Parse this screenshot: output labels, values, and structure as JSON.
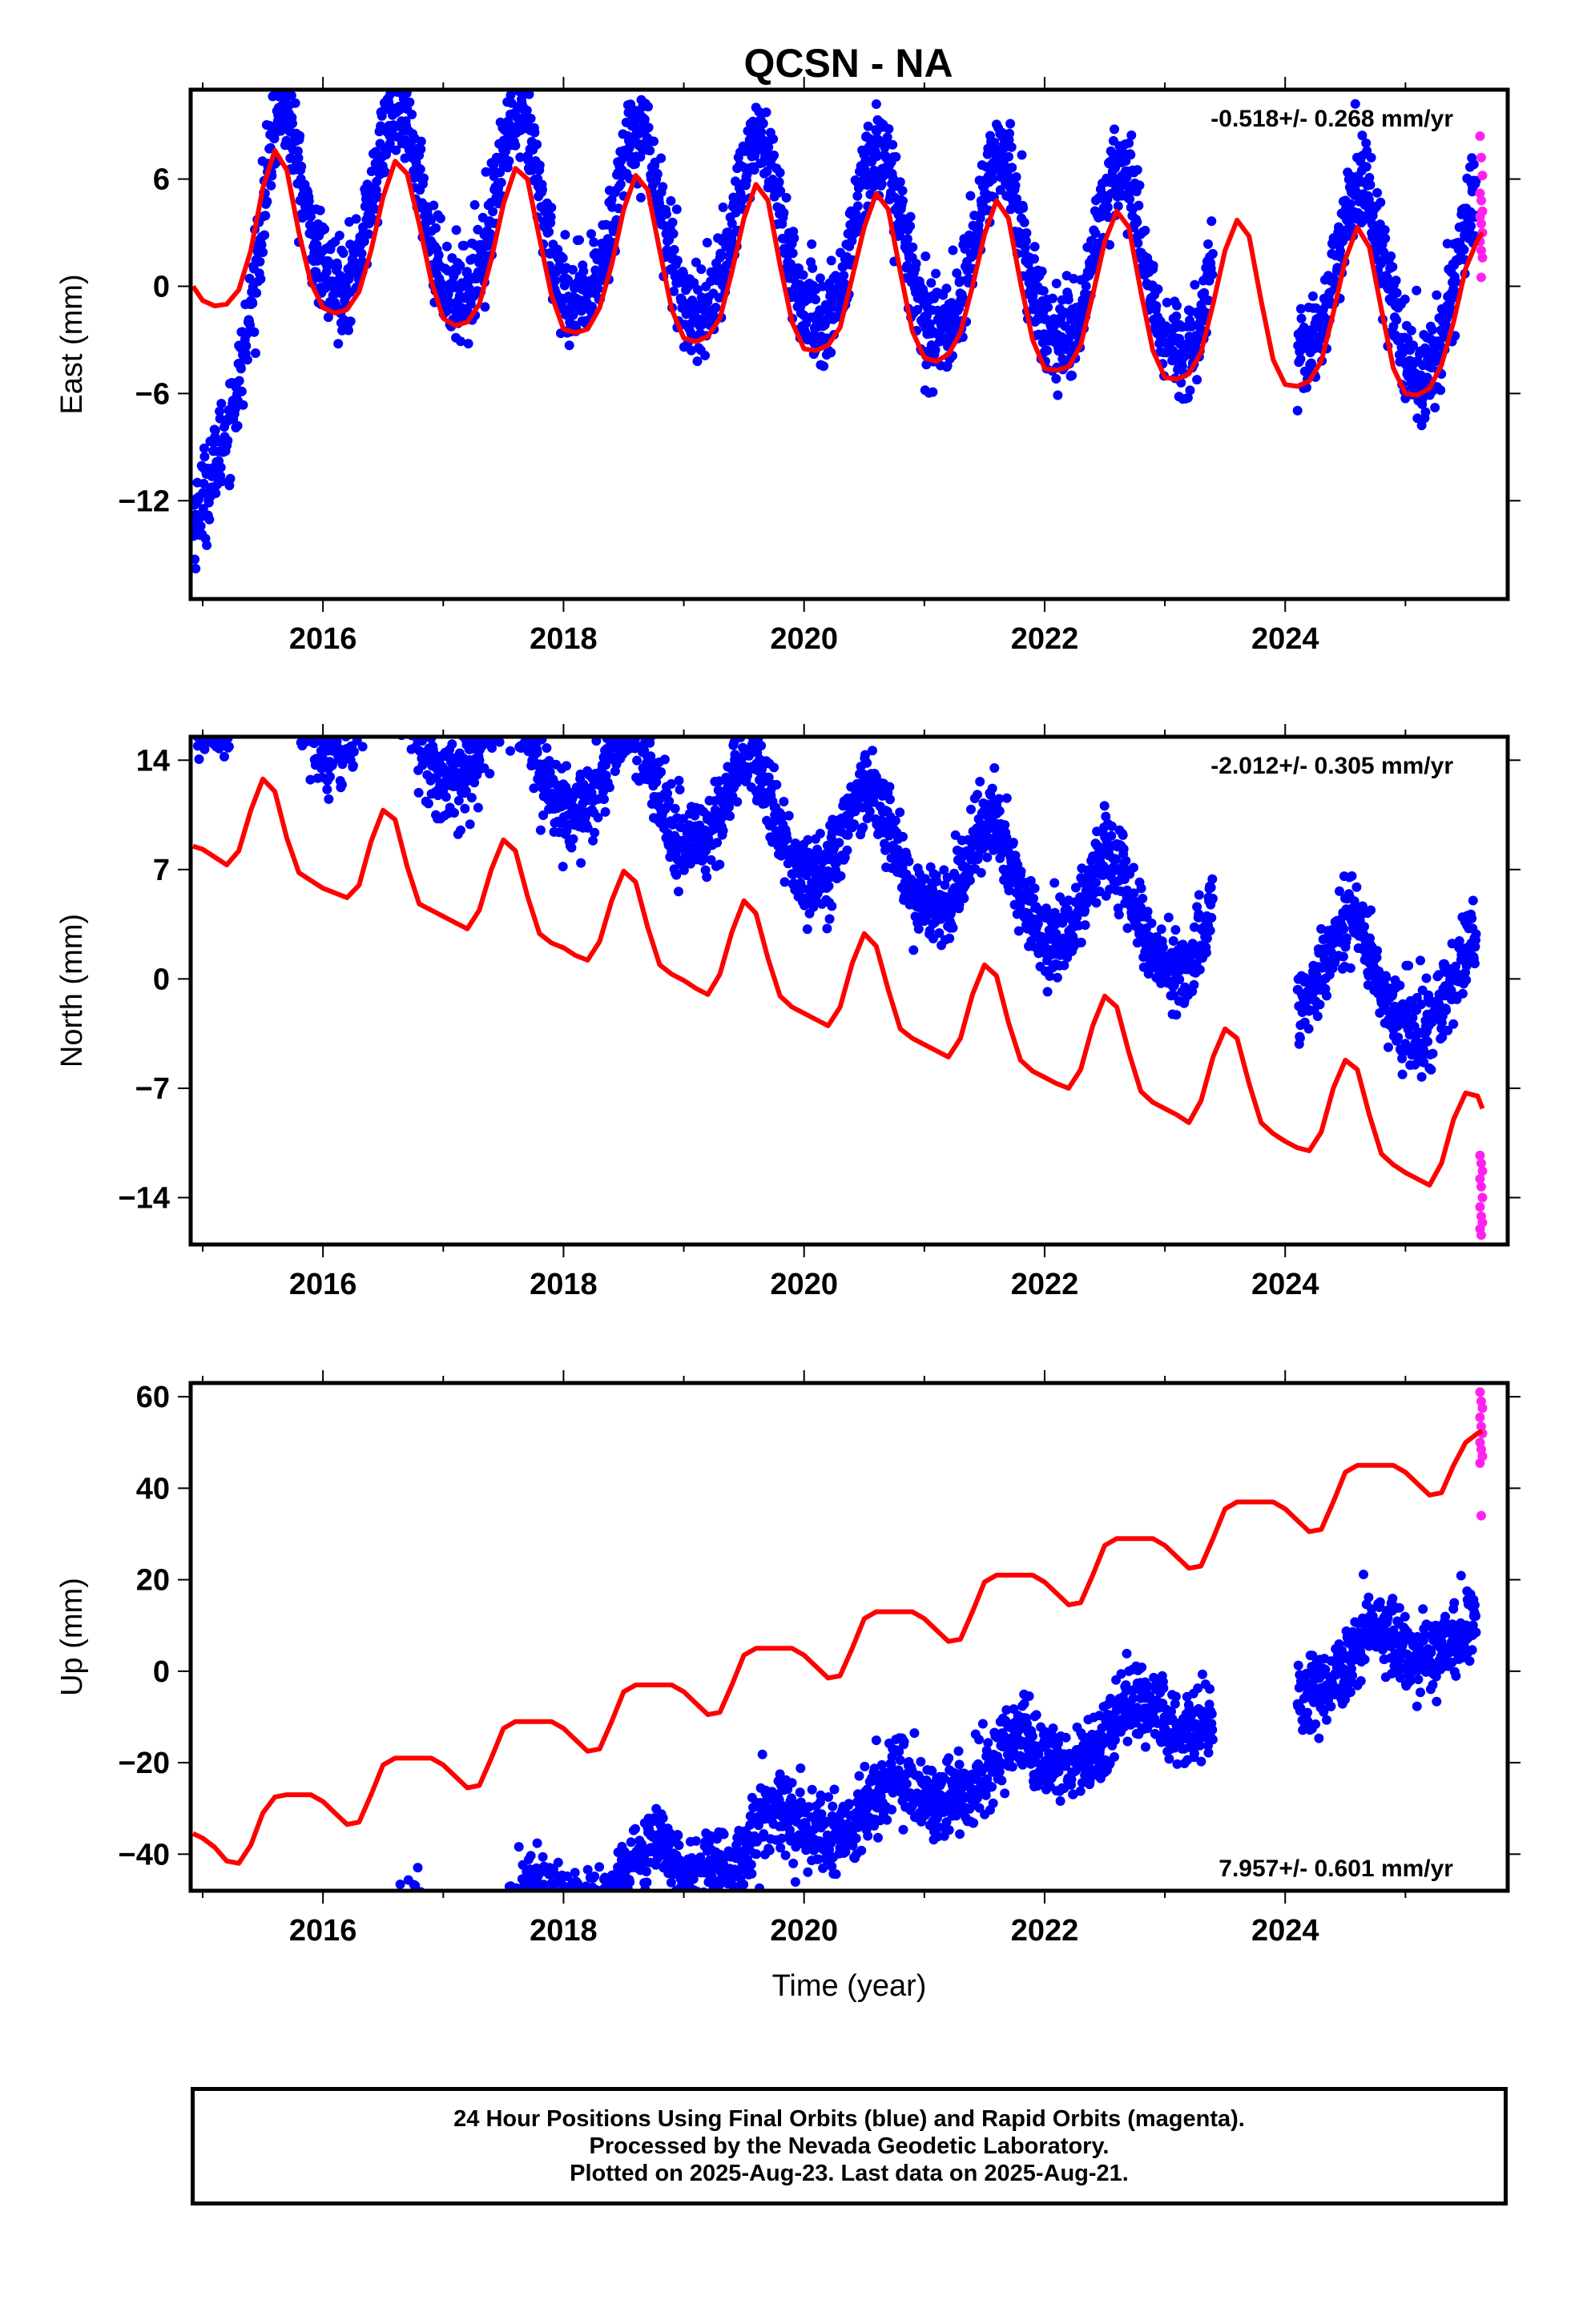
{
  "title": "QCSN - NA",
  "colors": {
    "final": "#0000ff",
    "rapid": "#ff22ee",
    "model": "#ff0000",
    "frame": "#000000"
  },
  "chart_data": [
    {
      "type": "scatter",
      "component": "east",
      "ylabel": "East (mm)",
      "xlabel": "",
      "rate_text": "-0.518+/- 0.268 mm/yr",
      "rate_position": "top-right",
      "xlim": [
        2014.9,
        2025.85
      ],
      "ylim": [
        -17.5,
        11
      ],
      "xticks": [
        2016,
        2018,
        2020,
        2022,
        2024
      ],
      "yticks": [
        6,
        0,
        -6,
        -12
      ],
      "data_start": 2014.92,
      "data_end": 2025.64,
      "trend_mm_per_yr": -0.518,
      "offset_mm": 2.5,
      "seasonal_amplitude_mm": 5.0,
      "seasonal_peak_fraction": 0.62,
      "scatter_mm": 1.3,
      "early_transient": {
        "start_mm": -13.5,
        "end_year": 2015.65
      },
      "gaps": [
        [
          2023.4,
          2024.1
        ]
      ],
      "model_series": {
        "name": "",
        "x": [
          2014.92,
          2015.0,
          2015.1,
          2015.2,
          2015.3,
          2015.4,
          2015.5,
          2015.6,
          2015.7,
          2015.8,
          2015.9,
          2016.0,
          2016.1,
          2016.2,
          2016.3,
          2016.4,
          2016.5,
          2016.6,
          2016.7,
          2016.8,
          2016.9,
          2017.0,
          2017.1,
          2017.2,
          2017.3,
          2017.4,
          2017.5,
          2017.6,
          2017.7,
          2017.8,
          2017.9,
          2018.0,
          2018.1,
          2018.2,
          2018.3,
          2018.4,
          2018.5,
          2018.6,
          2018.7,
          2018.8,
          2018.9,
          2019.0,
          2019.1,
          2019.2,
          2019.3,
          2019.4,
          2019.5,
          2019.6,
          2019.7,
          2019.8,
          2019.9,
          2020.0,
          2020.1,
          2020.2,
          2020.3,
          2020.4,
          2020.5,
          2020.6,
          2020.7,
          2020.8,
          2020.9,
          2021.0,
          2021.1,
          2021.2,
          2021.3,
          2021.4,
          2021.5,
          2021.6,
          2021.7,
          2021.8,
          2021.9,
          2022.0,
          2022.1,
          2022.2,
          2022.3,
          2022.4,
          2022.5,
          2022.6,
          2022.7,
          2022.8,
          2022.9,
          2023.0,
          2023.1,
          2023.2,
          2023.3,
          2023.4,
          2023.5,
          2023.6,
          2023.7,
          2023.8,
          2023.9,
          2024.0,
          2024.1,
          2024.2,
          2024.3,
          2024.4,
          2024.5,
          2024.6,
          2024.7,
          2024.8,
          2024.9,
          2025.0,
          2025.1,
          2025.2,
          2025.3,
          2025.4,
          2025.5,
          2025.6,
          2025.64
        ],
        "y": [
          0.0,
          -0.8,
          -1.1,
          -1.0,
          -0.2,
          2.0,
          5.5,
          7.6,
          6.5,
          3.0,
          0.2,
          -1.2,
          -1.5,
          -1.3,
          -0.3,
          2.0,
          5.0,
          7.0,
          6.3,
          3.5,
          0.3,
          -1.8,
          -2.2,
          -2.0,
          -1.0,
          1.5,
          4.6,
          6.6,
          6.0,
          2.7,
          -0.5,
          -2.4,
          -2.6,
          -2.4,
          -1.2,
          1.2,
          4.3,
          6.2,
          5.4,
          2.0,
          -1.3,
          -2.9,
          -3.1,
          -2.8,
          -1.8,
          0.8,
          3.8,
          5.7,
          4.8,
          1.2,
          -2.0,
          -3.5,
          -3.6,
          -3.3,
          -2.3,
          0.5,
          3.3,
          5.2,
          4.3,
          0.8,
          -2.5,
          -4.0,
          -4.2,
          -3.8,
          -2.6,
          0.0,
          2.9,
          4.8,
          3.8,
          0.2,
          -3.0,
          -4.6,
          -4.7,
          -4.5,
          -3.3,
          -0.5,
          2.5,
          4.2,
          3.3,
          -0.3,
          -3.6,
          -5.1,
          -5.2,
          -4.9,
          -3.7,
          -1.0,
          2.0,
          3.7,
          2.8,
          -0.8,
          -4.1,
          -5.5,
          -5.6,
          -5.3,
          -4.2,
          -1.5,
          1.5,
          3.3,
          2.2,
          -1.3,
          -4.6,
          -6.0,
          -6.1,
          -5.7,
          -4.4,
          -2.0,
          1.0,
          2.6,
          3.0
        ]
      },
      "rapid_points": [
        [
          2025.62,
          8.4
        ],
        [
          2025.63,
          7.2
        ],
        [
          2025.64,
          6.2
        ],
        [
          2025.62,
          5.2
        ],
        [
          2025.63,
          4.8
        ],
        [
          2025.64,
          4.2
        ],
        [
          2025.62,
          3.9
        ],
        [
          2025.63,
          3.5
        ],
        [
          2025.64,
          3.0
        ],
        [
          2025.62,
          2.5
        ],
        [
          2025.63,
          2.0
        ],
        [
          2025.64,
          1.6
        ],
        [
          2025.63,
          0.5
        ]
      ]
    },
    {
      "type": "scatter",
      "component": "north",
      "ylabel": "North (mm)",
      "xlabel": "",
      "rate_text": "-2.012+/- 0.305 mm/yr",
      "rate_position": "top-right",
      "xlim": [
        2014.9,
        2025.85
      ],
      "ylim": [
        -17,
        15.5
      ],
      "xticks": [
        2016,
        2018,
        2020,
        2022,
        2024
      ],
      "yticks": [
        14,
        7,
        0,
        -7,
        -14
      ],
      "data_start": 2014.92,
      "data_end": 2025.64,
      "trend_mm_per_yr": -2.012,
      "offset_mm": 9.5,
      "seasonal_amplitude_mm": 3.3,
      "seasonal_peak_fraction": 0.55,
      "scatter_mm": 1.3,
      "gaps": [
        [
          2023.4,
          2024.1
        ]
      ],
      "model_series": {
        "name": "",
        "x": [
          2014.92,
          2015.0,
          2015.1,
          2015.2,
          2015.3,
          2015.4,
          2015.5,
          2015.6,
          2015.7,
          2015.8,
          2015.9,
          2016.0,
          2016.1,
          2016.2,
          2016.3,
          2016.4,
          2016.5,
          2016.6,
          2016.7,
          2016.8,
          2016.9,
          2017.0,
          2017.1,
          2017.2,
          2017.3,
          2017.4,
          2017.5,
          2017.6,
          2017.7,
          2017.8,
          2017.9,
          2018.0,
          2018.1,
          2018.2,
          2018.3,
          2018.4,
          2018.5,
          2018.6,
          2018.7,
          2018.8,
          2018.9,
          2019.0,
          2019.1,
          2019.2,
          2019.3,
          2019.4,
          2019.5,
          2019.6,
          2019.7,
          2019.8,
          2019.9,
          2020.0,
          2020.1,
          2020.2,
          2020.3,
          2020.4,
          2020.5,
          2020.6,
          2020.7,
          2020.8,
          2020.9,
          2021.0,
          2021.1,
          2021.2,
          2021.3,
          2021.4,
          2021.5,
          2021.6,
          2021.7,
          2021.8,
          2021.9,
          2022.0,
          2022.1,
          2022.2,
          2022.3,
          2022.4,
          2022.5,
          2022.6,
          2022.7,
          2022.8,
          2022.9,
          2023.0,
          2023.1,
          2023.2,
          2023.3,
          2023.4,
          2023.5,
          2023.6,
          2023.7,
          2023.8,
          2023.9,
          2024.0,
          2024.1,
          2024.2,
          2024.3,
          2024.4,
          2024.5,
          2024.6,
          2024.7,
          2024.8,
          2024.9,
          2025.0,
          2025.1,
          2025.2,
          2025.3,
          2025.4,
          2025.5,
          2025.6,
          2025.64
        ],
        "y": [
          8.5,
          8.3,
          7.8,
          7.3,
          8.2,
          10.8,
          12.8,
          12.0,
          9.0,
          6.8,
          6.3,
          5.8,
          5.5,
          5.2,
          6.0,
          8.8,
          10.8,
          10.2,
          7.2,
          4.8,
          4.4,
          4.0,
          3.6,
          3.2,
          4.4,
          7.0,
          8.9,
          8.2,
          5.3,
          2.9,
          2.3,
          2.0,
          1.5,
          1.2,
          2.4,
          5.0,
          6.9,
          6.2,
          3.3,
          0.9,
          0.3,
          -0.1,
          -0.6,
          -1.0,
          0.3,
          3.0,
          5.0,
          4.2,
          1.3,
          -1.1,
          -1.8,
          -2.2,
          -2.6,
          -3.0,
          -1.8,
          1.0,
          2.9,
          2.1,
          -0.7,
          -3.2,
          -3.8,
          -4.2,
          -4.6,
          -5.0,
          -3.8,
          -1.0,
          0.9,
          0.2,
          -2.8,
          -5.2,
          -5.9,
          -6.3,
          -6.7,
          -7.0,
          -5.8,
          -3.0,
          -1.1,
          -1.8,
          -4.7,
          -7.2,
          -7.9,
          -8.3,
          -8.7,
          -9.2,
          -7.8,
          -5.0,
          -3.2,
          -3.8,
          -6.7,
          -9.2,
          -9.9,
          -10.4,
          -10.8,
          -11.0,
          -9.8,
          -7.0,
          -5.2,
          -5.8,
          -8.7,
          -11.2,
          -11.9,
          -12.4,
          -12.8,
          -13.2,
          -11.8,
          -9.0,
          -7.3,
          -7.5,
          -8.3
        ]
      },
      "rapid_points": [
        [
          2025.62,
          -11.3
        ],
        [
          2025.63,
          -11.8
        ],
        [
          2025.64,
          -12.3
        ],
        [
          2025.62,
          -12.8
        ],
        [
          2025.63,
          -13.3
        ],
        [
          2025.64,
          -14.0
        ],
        [
          2025.62,
          -14.6
        ],
        [
          2025.63,
          -15.2
        ],
        [
          2025.64,
          -15.6
        ],
        [
          2025.62,
          -16.0
        ],
        [
          2025.63,
          -16.4
        ]
      ]
    },
    {
      "type": "scatter",
      "component": "up",
      "ylabel": "Up (mm)",
      "xlabel": "Time (year)",
      "rate_text": "7.957+/- 0.601 mm/yr",
      "rate_position": "bottom-right",
      "xlim": [
        2014.9,
        2025.85
      ],
      "ylim": [
        -48,
        63
      ],
      "xticks": [
        2016,
        2018,
        2020,
        2022,
        2024
      ],
      "yticks": [
        60,
        40,
        20,
        0,
        -20,
        -40
      ],
      "data_start": 2014.92,
      "data_end": 2025.64,
      "trend_mm_per_yr": 7.957,
      "offset_mm": -34,
      "seasonal_amplitude_mm": 4.5,
      "seasonal_peak_fraction": 0.75,
      "scatter_mm": 4.2,
      "gaps": [
        [
          2023.4,
          2024.1
        ]
      ],
      "model_series": {
        "name": "",
        "x": [
          2014.92,
          2015.0,
          2015.1,
          2015.2,
          2015.3,
          2015.4,
          2015.5,
          2015.6,
          2015.7,
          2015.8,
          2015.9,
          2016.0,
          2016.1,
          2016.2,
          2016.3,
          2016.4,
          2016.5,
          2016.6,
          2016.7,
          2016.8,
          2016.9,
          2017.0,
          2017.1,
          2017.2,
          2017.3,
          2017.4,
          2017.5,
          2017.6,
          2017.7,
          2017.8,
          2017.9,
          2018.0,
          2018.1,
          2018.2,
          2018.3,
          2018.4,
          2018.5,
          2018.6,
          2018.7,
          2018.8,
          2018.9,
          2019.0,
          2019.1,
          2019.2,
          2019.3,
          2019.4,
          2019.5,
          2019.6,
          2019.7,
          2019.8,
          2019.9,
          2020.0,
          2020.1,
          2020.2,
          2020.3,
          2020.4,
          2020.5,
          2020.6,
          2020.7,
          2020.8,
          2020.9,
          2021.0,
          2021.1,
          2021.2,
          2021.3,
          2021.4,
          2021.5,
          2021.6,
          2021.7,
          2021.8,
          2021.9,
          2022.0,
          2022.1,
          2022.2,
          2022.3,
          2022.4,
          2022.5,
          2022.6,
          2022.7,
          2022.8,
          2022.9,
          2023.0,
          2023.1,
          2023.2,
          2023.3,
          2023.4,
          2023.5,
          2023.6,
          2023.7,
          2023.8,
          2023.9,
          2024.0,
          2024.1,
          2024.2,
          2024.3,
          2024.4,
          2024.5,
          2024.6,
          2024.7,
          2024.8,
          2024.9,
          2025.0,
          2025.1,
          2025.2,
          2025.3,
          2025.4,
          2025.5,
          2025.6,
          2025.64
        ],
        "y": [
          -35.5,
          -36.5,
          -38.5,
          -41.5,
          -42.0,
          -38.0,
          -31.0,
          -27.5,
          -27.0,
          -27.0,
          -27.0,
          -28.5,
          -31.0,
          -33.5,
          -33.0,
          -27.0,
          -20.5,
          -19.0,
          -19.0,
          -19.0,
          -19.0,
          -20.5,
          -23.0,
          -25.5,
          -25.0,
          -19.0,
          -12.5,
          -11.0,
          -11.0,
          -11.0,
          -11.0,
          -12.5,
          -15.0,
          -17.5,
          -17.0,
          -11.0,
          -4.5,
          -3.0,
          -3.0,
          -3.0,
          -3.0,
          -4.5,
          -7.0,
          -9.5,
          -9.0,
          -3.0,
          3.5,
          5.0,
          5.0,
          5.0,
          5.0,
          3.5,
          1.0,
          -1.5,
          -1.0,
          5.0,
          11.5,
          13.0,
          13.0,
          13.0,
          13.0,
          11.5,
          9.0,
          6.5,
          7.0,
          13.0,
          19.5,
          21.0,
          21.0,
          21.0,
          21.0,
          19.5,
          17.0,
          14.5,
          15.0,
          21.0,
          27.5,
          29.0,
          29.0,
          29.0,
          29.0,
          27.5,
          25.0,
          22.5,
          23.0,
          29.0,
          35.5,
          37.0,
          37.0,
          37.0,
          37.0,
          35.5,
          33.0,
          30.5,
          31.0,
          37.0,
          43.5,
          45.0,
          45.0,
          45.0,
          45.0,
          43.5,
          41.0,
          38.5,
          39.0,
          45.0,
          50.0,
          52.0,
          52.5
        ]
      },
      "rapid_points": [
        [
          2025.62,
          61.0
        ],
        [
          2025.63,
          59.0
        ],
        [
          2025.64,
          57.5
        ],
        [
          2025.62,
          55.5
        ],
        [
          2025.63,
          53.5
        ],
        [
          2025.64,
          52.0
        ],
        [
          2025.62,
          50.0
        ],
        [
          2025.63,
          48.5
        ],
        [
          2025.64,
          47.0
        ],
        [
          2025.62,
          45.5
        ],
        [
          2025.63,
          34.0
        ]
      ]
    }
  ],
  "footer": {
    "line1": "24 Hour Positions Using Final Orbits (blue) and Rapid Orbits (magenta).",
    "line2": "Processed by the Nevada Geodetic Laboratory.",
    "line3": "Plotted on 2025-Aug-23. Last data on 2025-Aug-21."
  }
}
